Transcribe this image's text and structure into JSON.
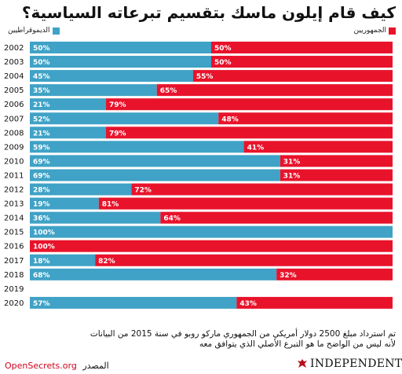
{
  "header": {
    "title": "كيف قام إيلون ماسك بتقسيم تبرعاته السياسية؟"
  },
  "chart_data": {
    "type": "bar",
    "stacked": true,
    "orientation": "horizontal",
    "categories": [
      "2002",
      "2003",
      "2004",
      "2005",
      "2006",
      "2007",
      "2008",
      "2009",
      "2010",
      "2011",
      "2012",
      "2013",
      "2014",
      "2015",
      "2016",
      "2017",
      "2018",
      "2019",
      "2020"
    ],
    "series": [
      {
        "name": "الديموقراطيين",
        "color": "#3fa2c6",
        "values": [
          50,
          50,
          45,
          35,
          21,
          52,
          21,
          59,
          69,
          69,
          28,
          19,
          36,
          100,
          0,
          18,
          68,
          null,
          57
        ],
        "labels": [
          "50%",
          "50%",
          "45%",
          "35%",
          "21%",
          "52%",
          "21%",
          "59%",
          "69%",
          "69%",
          "28%",
          "19%",
          "36%",
          "100%",
          "",
          "18%",
          "68%",
          "",
          "57%"
        ]
      },
      {
        "name": "الجمهوريين",
        "color": "#e8132b",
        "values": [
          50,
          50,
          55,
          65,
          79,
          48,
          79,
          41,
          31,
          31,
          72,
          81,
          64,
          0,
          100,
          82,
          32,
          null,
          43
        ],
        "labels": [
          "50%",
          "50%",
          "55%",
          "65%",
          "79%",
          "48%",
          "79%",
          "41%",
          "31%",
          "31%",
          "72%",
          "81%",
          "64%",
          "",
          "100%",
          "82%",
          "32%",
          "",
          "43%"
        ]
      }
    ],
    "xlim": [
      0,
      100
    ],
    "legend_position": "top"
  },
  "footer": {
    "note_line1": "تم استرداد مبلغ 2500 دولار أمريكي من الجمهوري ماركو روبو في سنة 2015 من البيانات",
    "note_line2": "لأنه ليس من الواضح ما هو التبرع الأصلي الذي يتوافق معه",
    "source_label": "المصدر",
    "source_site": "OpenSecrets.org",
    "brand": "INDEPENDENT"
  },
  "colors": {
    "dem": "#3fa2c6",
    "rep": "#e8132b",
    "site": "#d0021b"
  }
}
